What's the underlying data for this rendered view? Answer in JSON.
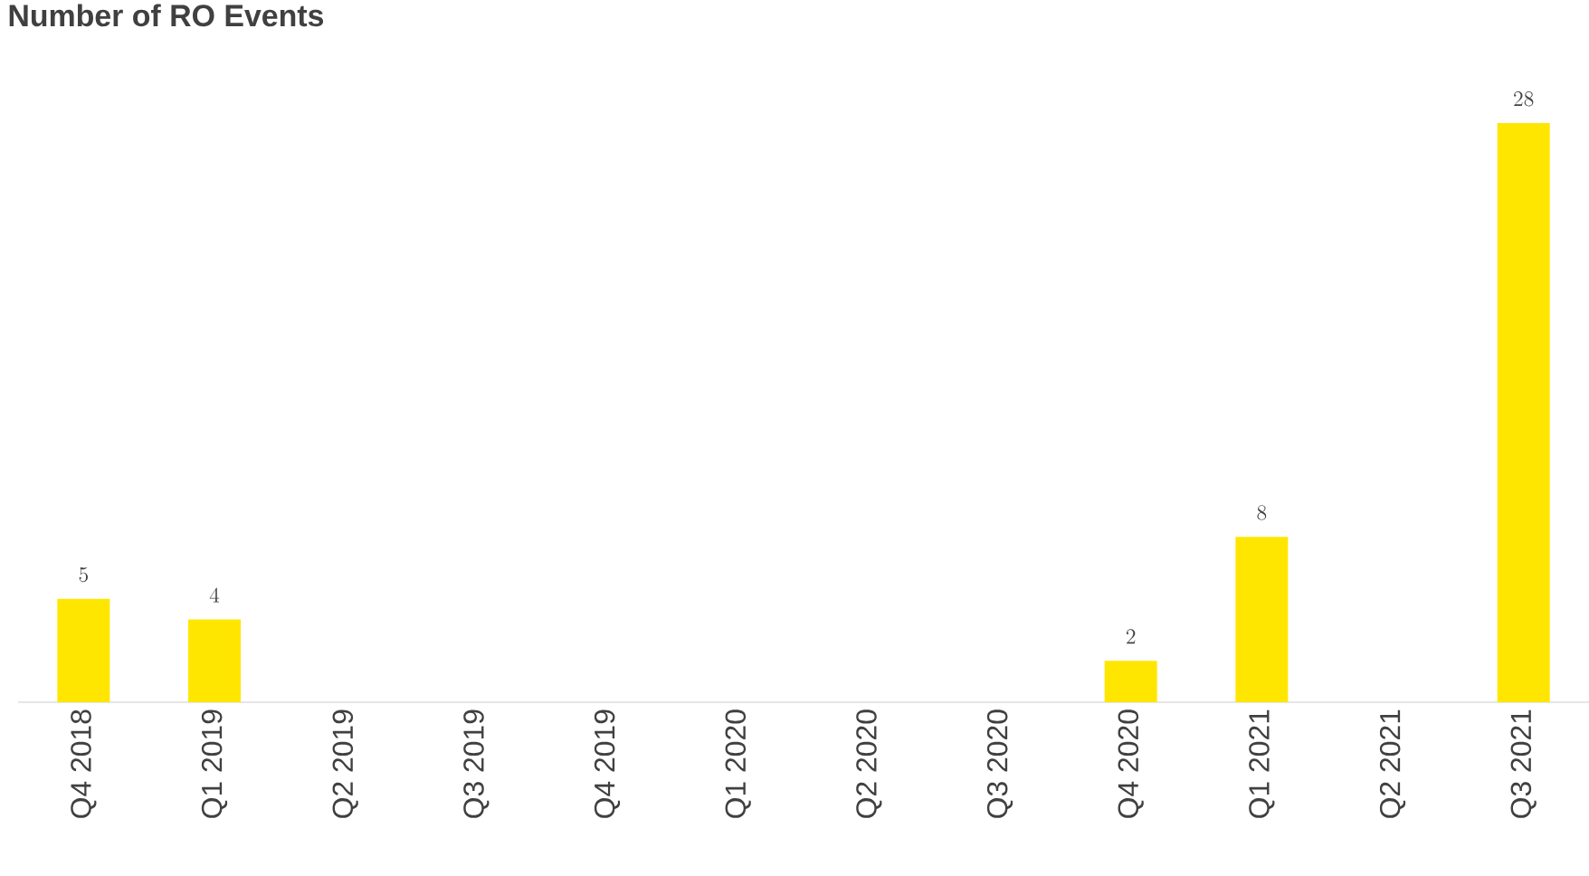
{
  "chart_data": {
    "type": "bar",
    "title": "Number of RO Events",
    "categories": [
      "Q4 2018",
      "Q1 2019",
      "Q2 2019",
      "Q3 2019",
      "Q4 2019",
      "Q1 2020",
      "Q2 2020",
      "Q3 2020",
      "Q4 2020",
      "Q1 2021",
      "Q2 2021",
      "Q3 2021"
    ],
    "values": [
      5,
      4,
      null,
      null,
      null,
      null,
      null,
      null,
      2,
      8,
      null,
      28
    ],
    "color": "#ffe600",
    "data_labels": true
  }
}
